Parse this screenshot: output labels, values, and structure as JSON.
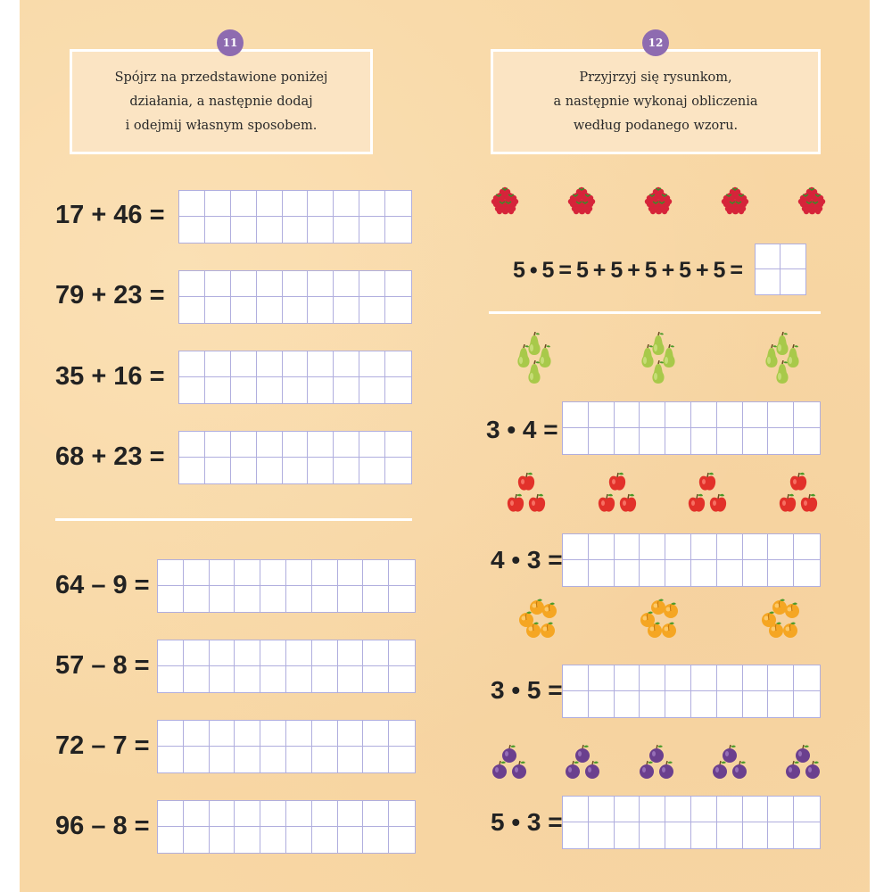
{
  "left": {
    "badge": "11",
    "instruction": [
      "Spójrz na przedstawione poniżej",
      "działania, a następnie dodaj",
      "i odejmij własnym sposobem."
    ],
    "addition": [
      "17 + 46 =",
      "79 + 23 =",
      "35 + 16 =",
      "68 + 23 ="
    ],
    "subtraction": [
      "64 – 9 =",
      "57 – 8 =",
      "72 – 7 =",
      "96 – 8 ="
    ]
  },
  "right": {
    "badge": "12",
    "instruction": [
      "Przyjrzyj się rysunkom,",
      "a następnie wykonaj obliczenia",
      "według podanego wzoru."
    ],
    "example": {
      "equation": "5 • 5 = 5 + 5 + 5 + 5 + 5 =",
      "fruit": "raspberry-icon",
      "groups": 5,
      "per_group": 5
    },
    "tasks": [
      {
        "equation": "3 • 4 =",
        "fruit": "pear-icon",
        "groups": 3,
        "per_group": 4
      },
      {
        "equation": "4 • 3 =",
        "fruit": "apple-icon",
        "groups": 4,
        "per_group": 3
      },
      {
        "equation": "3 • 5 =",
        "fruit": "apricot-icon",
        "groups": 3,
        "per_group": 5
      },
      {
        "equation": "5 • 3 =",
        "fruit": "plum-icon",
        "groups": 5,
        "per_group": 3
      }
    ]
  },
  "colors": {
    "background": "#f8d7a4",
    "badge": "#8e6bb0",
    "grid_line": "#b0aede",
    "raspberry": "#d6243a",
    "pear": "#a8c94a",
    "apple": "#e2312a",
    "apricot": "#f5a623",
    "plum": "#6b3f8e"
  }
}
